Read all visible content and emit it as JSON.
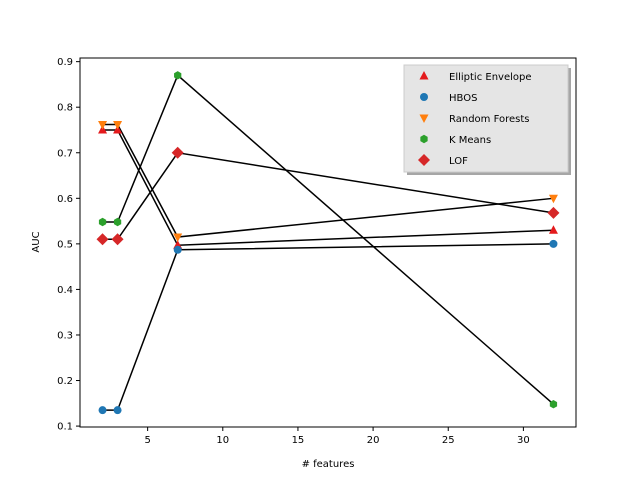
{
  "chart_data": {
    "type": "scatter",
    "xlabel": "# features",
    "ylabel": "AUC",
    "xlim": [
      0.5,
      33.5
    ],
    "ylim": [
      0.098,
      0.908
    ],
    "x_ticks": [
      5,
      10,
      15,
      20,
      25,
      30
    ],
    "y_ticks": [
      0.1,
      0.2,
      0.3,
      0.4,
      0.5,
      0.6,
      0.7,
      0.8,
      0.9
    ],
    "grid": false,
    "legend_position": "top-right",
    "connector_color": "#000000",
    "series": [
      {
        "name": "Elliptic Envelope",
        "marker": "triangle-up",
        "color": "#e41a1c",
        "x": [
          2,
          3,
          7,
          32
        ],
        "y": [
          0.75,
          0.75,
          0.497,
          0.53
        ]
      },
      {
        "name": "HBOS",
        "marker": "circle",
        "color": "#1f77b4",
        "x": [
          2,
          3,
          7,
          32
        ],
        "y": [
          0.135,
          0.135,
          0.487,
          0.5
        ]
      },
      {
        "name": "Random Forests",
        "marker": "triangle-down",
        "color": "#ff7f0e",
        "x": [
          2,
          3,
          7,
          32
        ],
        "y": [
          0.762,
          0.762,
          0.515,
          0.6
        ]
      },
      {
        "name": "K Means",
        "marker": "hexagon",
        "color": "#2ca02c",
        "x": [
          2,
          3,
          7,
          32
        ],
        "y": [
          0.548,
          0.548,
          0.87,
          0.148
        ]
      },
      {
        "name": "LOF",
        "marker": "diamond",
        "color": "#d62728",
        "x": [
          2,
          3,
          7,
          32
        ],
        "y": [
          0.51,
          0.51,
          0.7,
          0.568
        ]
      }
    ]
  }
}
